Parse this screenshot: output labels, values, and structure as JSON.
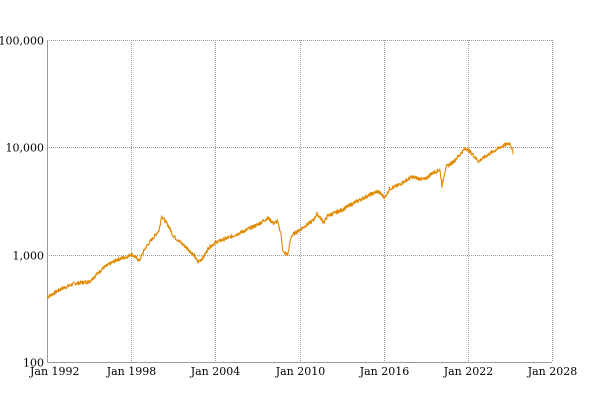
{
  "chart_data": {
    "type": "line",
    "title": "",
    "xlabel": "",
    "ylabel": "",
    "y_scale": "log",
    "grid": true,
    "x_range": [
      "1992-01",
      "2028-01"
    ],
    "ylim": [
      100,
      100000
    ],
    "x_ticks": [
      "Jan 1992",
      "Jan 1998",
      "Jan 2004",
      "Jan 2010",
      "Jan 2016",
      "Jan 2022",
      "Jan 2028"
    ],
    "y_ticks": [
      "100",
      "1,000",
      "10,000",
      "100,000"
    ],
    "y_tick_values": [
      100,
      1000,
      10000,
      100000
    ],
    "x_tick_dates": [
      "1992-01",
      "1998-01",
      "2004-01",
      "2010-01",
      "2016-01",
      "2022-01",
      "2028-01"
    ],
    "series": [
      {
        "color": "#e08a00",
        "x": [
          "1992-01",
          "1993-01",
          "1994-01",
          "1995-01",
          "1996-01",
          "1997-01",
          "1997-10",
          "1998-01",
          "1998-08",
          "1999-01",
          "1999-07",
          "2000-01",
          "2000-03",
          "2000-09",
          "2001-01",
          "2001-09",
          "2002-01",
          "2002-07",
          "2002-10",
          "2003-03",
          "2003-07",
          "2004-01",
          "2005-01",
          "2006-01",
          "2007-01",
          "2007-10",
          "2008-03",
          "2008-06",
          "2008-09",
          "2008-11",
          "2009-03",
          "2009-06",
          "2010-01",
          "2011-01",
          "2011-04",
          "2011-10",
          "2012-01",
          "2013-01",
          "2014-01",
          "2015-01",
          "2015-08",
          "2016-02",
          "2016-06",
          "2017-01",
          "2018-01",
          "2018-12",
          "2019-06",
          "2020-01",
          "2020-03",
          "2020-06",
          "2021-01",
          "2021-11",
          "2022-01",
          "2022-06",
          "2022-10",
          "2023-06",
          "2024-01",
          "2024-06",
          "2025-01",
          "2025-03",
          "2025-04"
        ],
        "y": [
          400,
          480,
          540,
          560,
          750,
          900,
          960,
          1020,
          880,
          1150,
          1400,
          1700,
          2300,
          1850,
          1500,
          1250,
          1150,
          980,
          850,
          950,
          1150,
          1300,
          1450,
          1650,
          1900,
          2200,
          1950,
          2050,
          1600,
          1050,
          1000,
          1500,
          1700,
          2100,
          2400,
          2000,
          2300,
          2600,
          3100,
          3600,
          3900,
          3400,
          4100,
          4400,
          5300,
          5000,
          5700,
          6200,
          4400,
          6500,
          7400,
          9800,
          9500,
          8400,
          7400,
          8500,
          9500,
          10200,
          11000,
          9500,
          8600
        ]
      }
    ]
  }
}
